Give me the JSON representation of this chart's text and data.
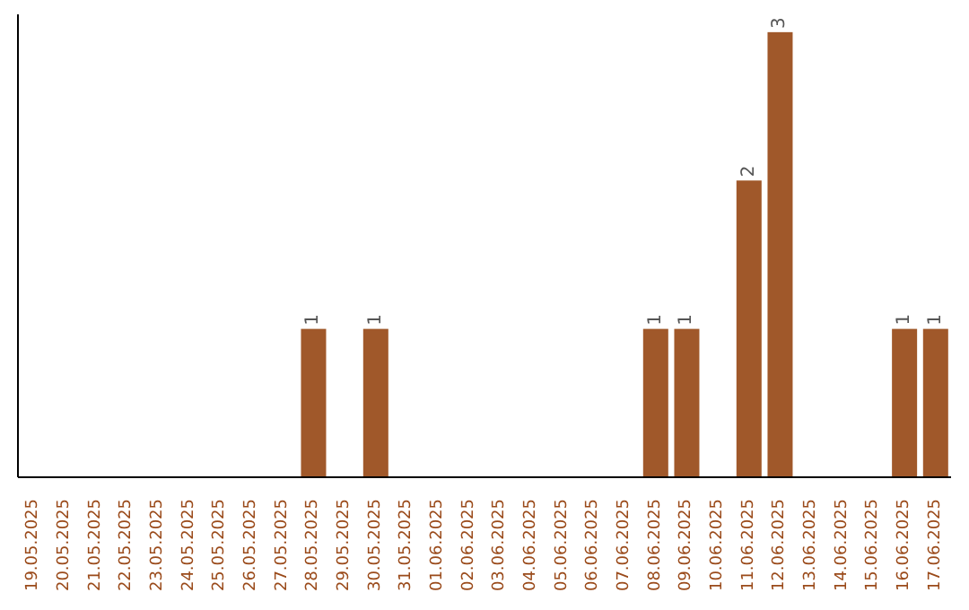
{
  "chart_data": {
    "type": "bar",
    "categories": [
      "19.05.2025",
      "20.05.2025",
      "21.05.2025",
      "22.05.2025",
      "23.05.2025",
      "24.05.2025",
      "25.05.2025",
      "26.05.2025",
      "27.05.2025",
      "28.05.2025",
      "29.05.2025",
      "30.05.2025",
      "31.05.2025",
      "01.06.2025",
      "02.06.2025",
      "03.06.2025",
      "04.06.2025",
      "05.06.2025",
      "06.06.2025",
      "07.06.2025",
      "08.06.2025",
      "09.06.2025",
      "10.06.2025",
      "11.06.2025",
      "12.06.2025",
      "13.06.2025",
      "14.06.2025",
      "15.06.2025",
      "16.06.2025",
      "17.06.2025"
    ],
    "values": [
      0,
      0,
      0,
      0,
      0,
      0,
      0,
      0,
      0,
      1,
      0,
      1,
      0,
      0,
      0,
      0,
      0,
      0,
      0,
      0,
      1,
      1,
      0,
      2,
      3,
      0,
      0,
      0,
      1,
      1
    ],
    "value_labels": [
      null,
      null,
      null,
      null,
      null,
      null,
      null,
      null,
      null,
      "1",
      null,
      "1",
      null,
      null,
      null,
      null,
      null,
      null,
      null,
      null,
      "1",
      "1",
      null,
      "2",
      "3",
      null,
      null,
      null,
      "1",
      "1"
    ],
    "color": "#a0582a",
    "tick_labels": "x",
    "grid": false
  }
}
